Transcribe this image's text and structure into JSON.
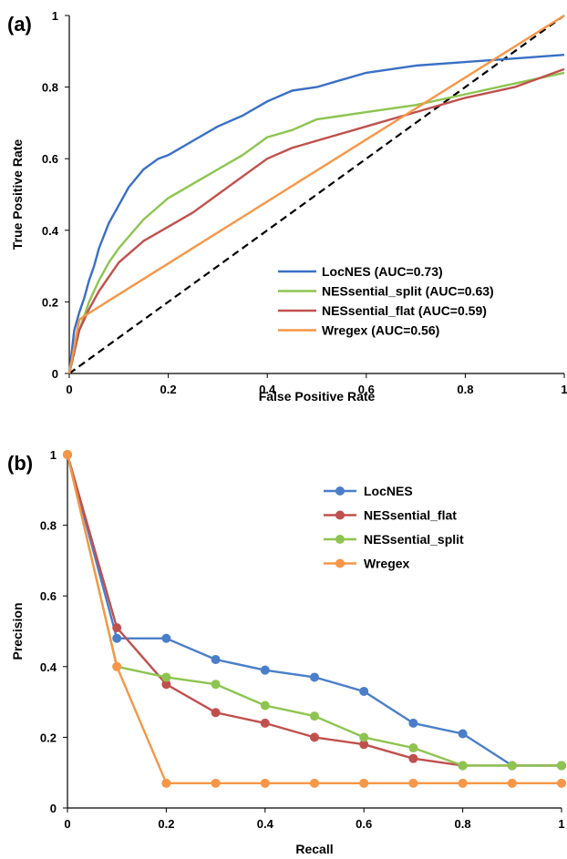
{
  "chart_data": [
    {
      "panel_label": "(a)",
      "type": "line",
      "xlabel": "False Positive Rate",
      "ylabel": "True Positive Rate",
      "xlim": [
        0,
        1
      ],
      "ylim": [
        0,
        1
      ],
      "xticks": [
        "0",
        "0.2",
        "0.4",
        "0.6",
        "0.8",
        "1"
      ],
      "yticks": [
        "0",
        "0.2",
        "0.4",
        "0.6",
        "0.8",
        "1"
      ],
      "grid": false,
      "legend_position": "bottom-right",
      "series": [
        {
          "name": "LocNES (AUC=0.73)",
          "color": "#3a6fc4",
          "x": [
            0,
            0.01,
            0.02,
            0.03,
            0.04,
            0.05,
            0.06,
            0.08,
            0.1,
            0.12,
            0.15,
            0.18,
            0.2,
            0.25,
            0.3,
            0.35,
            0.4,
            0.45,
            0.5,
            0.55,
            0.6,
            0.7,
            0.8,
            0.9,
            1.0
          ],
          "y": [
            0,
            0.12,
            0.17,
            0.21,
            0.26,
            0.3,
            0.35,
            0.42,
            0.47,
            0.52,
            0.57,
            0.6,
            0.61,
            0.65,
            0.69,
            0.72,
            0.76,
            0.79,
            0.8,
            0.82,
            0.84,
            0.86,
            0.87,
            0.88,
            0.89
          ]
        },
        {
          "name": "NESsential_split (AUC=0.63)",
          "color": "#8dc44f",
          "x": [
            0,
            0.02,
            0.04,
            0.06,
            0.08,
            0.1,
            0.15,
            0.2,
            0.25,
            0.3,
            0.35,
            0.4,
            0.45,
            0.5,
            0.6,
            0.7,
            0.8,
            0.9,
            1.0
          ],
          "y": [
            0,
            0.12,
            0.2,
            0.26,
            0.31,
            0.35,
            0.43,
            0.49,
            0.53,
            0.57,
            0.61,
            0.66,
            0.68,
            0.71,
            0.73,
            0.75,
            0.78,
            0.81,
            0.84
          ]
        },
        {
          "name": "NESsential_flat (AUC=0.59)",
          "color": "#c0504d",
          "x": [
            0,
            0.02,
            0.04,
            0.06,
            0.08,
            0.1,
            0.15,
            0.2,
            0.25,
            0.3,
            0.35,
            0.4,
            0.45,
            0.5,
            0.6,
            0.7,
            0.8,
            0.9,
            1.0
          ],
          "y": [
            0,
            0.12,
            0.18,
            0.23,
            0.27,
            0.31,
            0.37,
            0.41,
            0.45,
            0.5,
            0.55,
            0.6,
            0.63,
            0.65,
            0.69,
            0.73,
            0.77,
            0.8,
            0.85
          ]
        },
        {
          "name": "Wregex (AUC=0.56)",
          "color": "#f79646",
          "x": [
            0,
            0.02,
            0.03,
            1.0
          ],
          "y": [
            0,
            0.15,
            0.16,
            1.0
          ]
        }
      ],
      "reference_line": {
        "x": [
          0,
          1
        ],
        "y": [
          0,
          1
        ],
        "style": "dashed",
        "color": "#000000"
      }
    },
    {
      "panel_label": "(b)",
      "type": "line",
      "xlabel": "Recall",
      "ylabel": "Precision",
      "xlim": [
        0,
        1
      ],
      "ylim": [
        0,
        1
      ],
      "xticks": [
        "0",
        "0.2",
        "0.4",
        "0.6",
        "0.8",
        "1"
      ],
      "yticks": [
        "0",
        "0.2",
        "0.4",
        "0.6",
        "0.8",
        "1"
      ],
      "grid": false,
      "legend_position": "top-right",
      "markers": true,
      "series": [
        {
          "name": "LocNES",
          "color": "#4a7ec9",
          "x": [
            0,
            0.1,
            0.2,
            0.3,
            0.4,
            0.5,
            0.6,
            0.7,
            0.8,
            0.9,
            1.0
          ],
          "y": [
            1.0,
            0.48,
            0.48,
            0.42,
            0.39,
            0.37,
            0.33,
            0.24,
            0.21,
            0.12,
            0.12
          ]
        },
        {
          "name": "NESsential_flat",
          "color": "#c0504d",
          "x": [
            0,
            0.1,
            0.2,
            0.3,
            0.4,
            0.5,
            0.6,
            0.7,
            0.8,
            0.9,
            1.0
          ],
          "y": [
            1.0,
            0.51,
            0.35,
            0.27,
            0.24,
            0.2,
            0.18,
            0.14,
            0.12,
            0.12,
            0.12
          ]
        },
        {
          "name": "NESsential_split",
          "color": "#8dc44f",
          "x": [
            0,
            0.1,
            0.2,
            0.3,
            0.4,
            0.5,
            0.6,
            0.7,
            0.8,
            0.9,
            1.0
          ],
          "y": [
            1.0,
            0.4,
            0.37,
            0.35,
            0.29,
            0.26,
            0.2,
            0.17,
            0.12,
            0.12,
            0.12
          ]
        },
        {
          "name": "Wregex",
          "color": "#f79646",
          "x": [
            0,
            0.1,
            0.2,
            0.3,
            0.4,
            0.5,
            0.6,
            0.7,
            0.8,
            0.9,
            1.0
          ],
          "y": [
            1.0,
            0.4,
            0.07,
            0.07,
            0.07,
            0.07,
            0.07,
            0.07,
            0.07,
            0.07,
            0.07
          ]
        }
      ]
    }
  ]
}
